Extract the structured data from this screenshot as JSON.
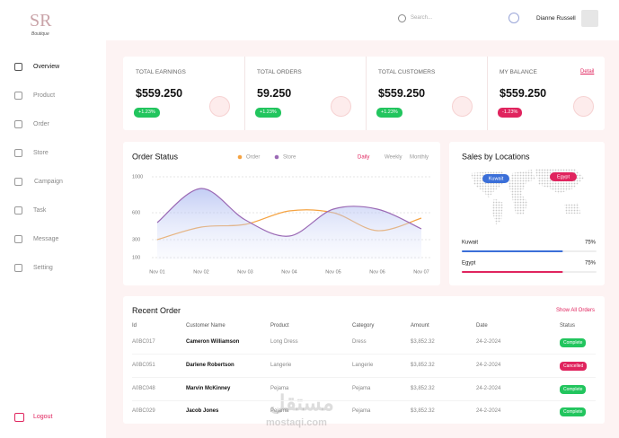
{
  "brand": {
    "name": "Boutique"
  },
  "header": {
    "search": "Search...",
    "user": "Dianne Russell"
  },
  "sidebar": {
    "menu": [
      "Overview",
      "Product",
      "Order",
      "Store",
      "Campaign",
      "Task",
      "Message",
      "Setting"
    ],
    "logout": "Logout"
  },
  "cards": [
    {
      "title": "TOTAL EARNINGS",
      "value": "$559.250",
      "change": "+1.23%"
    },
    {
      "title": "TOTAL ORDERS",
      "value": "59.250",
      "change": "+1.23%"
    },
    {
      "title": "TOTAL CUSTOMERS",
      "value": "$559.250",
      "change": "+1.23%"
    },
    {
      "title": "MY BALANCE",
      "value": "$559.250",
      "change": "-1.23%",
      "link": "Detail"
    }
  ],
  "chart_data": {
    "type": "line",
    "title": "Order Status",
    "tabs": [
      "Daily",
      "Weekly",
      "Monthly"
    ],
    "categories": [
      "Nov 01",
      "Nov 02",
      "Nov 03",
      "Nov 04",
      "Nov 05",
      "Nov 06",
      "Nov 07"
    ],
    "series": [
      {
        "name": "Order",
        "color": "#f5a342",
        "values": [
          300,
          440,
          470,
          620,
          600,
          400,
          540
        ]
      },
      {
        "name": "Store",
        "color": "#9b6ab5",
        "values": [
          490,
          870,
          520,
          340,
          640,
          640,
          420
        ]
      }
    ],
    "ylim": [
      100,
      1000
    ],
    "yticks": [
      100,
      300,
      600,
      1000
    ],
    "grid": true
  },
  "locations": {
    "title": "Sales by Locations",
    "names": [
      "Kuwait",
      "Egypt"
    ],
    "values": [
      75,
      75
    ],
    "value_labels": [
      "75%",
      "75%"
    ],
    "colors": [
      "#3b6fd8",
      "#e0245e"
    ]
  },
  "recent_orders": {
    "title": "Recent Order",
    "link": "Show All Orders",
    "columns": [
      "Id",
      "Customer Name",
      "Product",
      "Category",
      "Amount",
      "Date",
      "Status"
    ],
    "rows": [
      [
        "A0BC017",
        "Cameron Williamson",
        "Long Dress",
        "Dress",
        "$3,852.32",
        "24-2-2024",
        "Complete"
      ],
      [
        "A0BC051",
        "Darlene Robertson",
        "Langerie",
        "Langerie",
        "$3,852.32",
        "24-2-2024",
        "Cancelled"
      ],
      [
        "A0BC048",
        "Marvin McKinney",
        "Pejama",
        "Pejama",
        "$3,852.32",
        "24-2-2024",
        "Complete"
      ],
      [
        "A0BC029",
        "Jacob Jones",
        "Pejama",
        "Pejama",
        "$3,852.32",
        "24-2-2024",
        "Complete"
      ]
    ],
    "status_colors": {
      "Complete": "#22c55e",
      "Cancelled": "#e0245e"
    }
  },
  "watermark": {
    "arabic": "مستقل",
    "latin": "mostaqi.com"
  }
}
